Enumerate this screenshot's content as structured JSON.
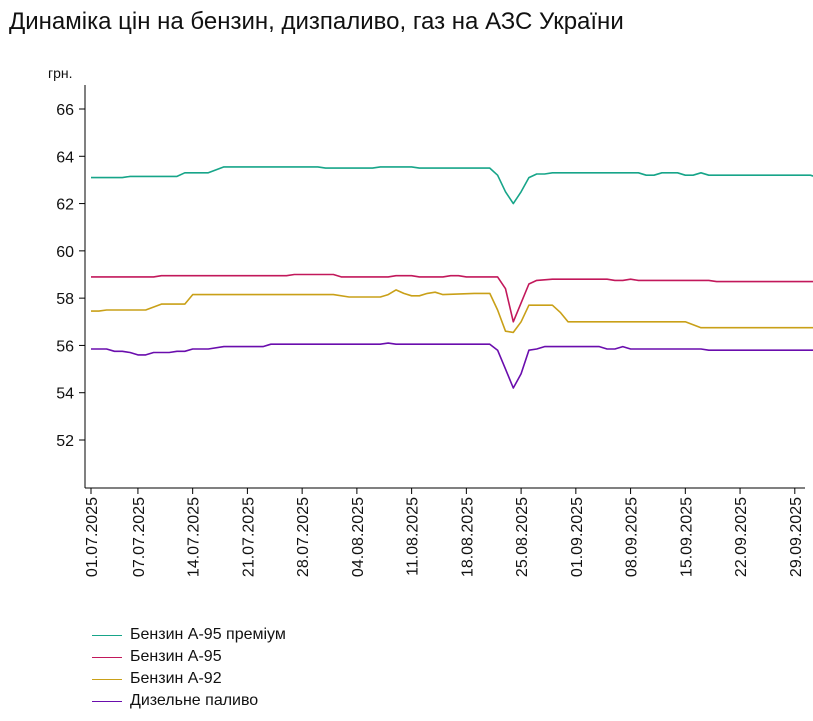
{
  "title": "Динаміка цін на бензин, дизпаливо, газ на АЗС України",
  "colors": {
    "a95_premium": "#17a589",
    "a95": "#c2185b",
    "a92": "#c9a018",
    "diesel": "#6a0dad",
    "axis": "#000000"
  },
  "chart_data": {
    "type": "line",
    "title": "Динаміка цін на бензин, дизпаливо, газ на АЗС України",
    "ylabel": "грн.",
    "xlabel": "",
    "ylim": [
      50,
      67
    ],
    "yticks": [
      52,
      54,
      56,
      58,
      60,
      62,
      64,
      66
    ],
    "x_start": "2025-07-01",
    "x_end": "2025-10-02",
    "x_tick_labels": [
      "01.07.2025",
      "07.07.2025",
      "14.07.2025",
      "21.07.2025",
      "28.07.2025",
      "04.08.2025",
      "11.08.2025",
      "18.08.2025",
      "25.08.2025",
      "01.09.2025",
      "08.09.2025",
      "15.09.2025",
      "22.09.2025",
      "29.09.2025"
    ],
    "grid": "none",
    "legend_placement": "bottom-left",
    "series": [
      {
        "name": "Бензин А-95 преміум",
        "color_key": "a95_premium",
        "points": [
          [
            "2025-07-01",
            63.1
          ],
          [
            "2025-07-05",
            63.1
          ],
          [
            "2025-07-06",
            63.15
          ],
          [
            "2025-07-12",
            63.15
          ],
          [
            "2025-07-13",
            63.3
          ],
          [
            "2025-07-16",
            63.3
          ],
          [
            "2025-07-18",
            63.55
          ],
          [
            "2025-07-30",
            63.55
          ],
          [
            "2025-07-31",
            63.5
          ],
          [
            "2025-08-06",
            63.5
          ],
          [
            "2025-08-07",
            63.55
          ],
          [
            "2025-08-11",
            63.55
          ],
          [
            "2025-08-12",
            63.5
          ],
          [
            "2025-08-21",
            63.5
          ],
          [
            "2025-08-22",
            63.2
          ],
          [
            "2025-08-23",
            62.5
          ],
          [
            "2025-08-24",
            62.0
          ],
          [
            "2025-08-25",
            62.5
          ],
          [
            "2025-08-26",
            63.1
          ],
          [
            "2025-08-27",
            63.25
          ],
          [
            "2025-08-28",
            63.25
          ],
          [
            "2025-08-29",
            63.3
          ],
          [
            "2025-09-09",
            63.3
          ],
          [
            "2025-09-10",
            63.2
          ],
          [
            "2025-09-11",
            63.2
          ],
          [
            "2025-09-12",
            63.3
          ],
          [
            "2025-09-14",
            63.3
          ],
          [
            "2025-09-15",
            63.2
          ],
          [
            "2025-09-16",
            63.2
          ],
          [
            "2025-09-17",
            63.3
          ],
          [
            "2025-09-18",
            63.2
          ],
          [
            "2025-10-01",
            63.2
          ],
          [
            "2025-10-02",
            63.1
          ]
        ]
      },
      {
        "name": "Бензин А-95",
        "color_key": "a95",
        "points": [
          [
            "2025-07-01",
            58.9
          ],
          [
            "2025-07-09",
            58.9
          ],
          [
            "2025-07-10",
            58.95
          ],
          [
            "2025-07-26",
            58.95
          ],
          [
            "2025-07-27",
            59.0
          ],
          [
            "2025-08-01",
            59.0
          ],
          [
            "2025-08-02",
            58.9
          ],
          [
            "2025-08-08",
            58.9
          ],
          [
            "2025-08-09",
            58.95
          ],
          [
            "2025-08-11",
            58.95
          ],
          [
            "2025-08-12",
            58.9
          ],
          [
            "2025-08-15",
            58.9
          ],
          [
            "2025-08-16",
            58.95
          ],
          [
            "2025-08-17",
            58.95
          ],
          [
            "2025-08-18",
            58.9
          ],
          [
            "2025-08-22",
            58.9
          ],
          [
            "2025-08-23",
            58.4
          ],
          [
            "2025-08-24",
            57.0
          ],
          [
            "2025-08-25",
            57.8
          ],
          [
            "2025-08-26",
            58.6
          ],
          [
            "2025-08-27",
            58.75
          ],
          [
            "2025-08-29",
            58.8
          ],
          [
            "2025-09-05",
            58.8
          ],
          [
            "2025-09-06",
            58.75
          ],
          [
            "2025-09-07",
            58.75
          ],
          [
            "2025-09-08",
            58.8
          ],
          [
            "2025-09-09",
            58.75
          ],
          [
            "2025-09-18",
            58.75
          ],
          [
            "2025-09-19",
            58.7
          ],
          [
            "2025-10-02",
            58.7
          ]
        ]
      },
      {
        "name": "Бензин А-92",
        "color_key": "a92",
        "points": [
          [
            "2025-07-01",
            57.45
          ],
          [
            "2025-07-02",
            57.45
          ],
          [
            "2025-07-03",
            57.5
          ],
          [
            "2025-07-08",
            57.5
          ],
          [
            "2025-07-10",
            57.75
          ],
          [
            "2025-07-13",
            57.75
          ],
          [
            "2025-07-14",
            58.15
          ],
          [
            "2025-08-01",
            58.15
          ],
          [
            "2025-08-03",
            58.05
          ],
          [
            "2025-08-07",
            58.05
          ],
          [
            "2025-08-08",
            58.15
          ],
          [
            "2025-08-09",
            58.35
          ],
          [
            "2025-08-10",
            58.2
          ],
          [
            "2025-08-11",
            58.1
          ],
          [
            "2025-08-12",
            58.1
          ],
          [
            "2025-08-13",
            58.2
          ],
          [
            "2025-08-14",
            58.25
          ],
          [
            "2025-08-15",
            58.15
          ],
          [
            "2025-08-19",
            58.2
          ],
          [
            "2025-08-21",
            58.2
          ],
          [
            "2025-08-22",
            57.5
          ],
          [
            "2025-08-23",
            56.6
          ],
          [
            "2025-08-24",
            56.55
          ],
          [
            "2025-08-25",
            57.0
          ],
          [
            "2025-08-26",
            57.7
          ],
          [
            "2025-08-29",
            57.7
          ],
          [
            "2025-08-30",
            57.4
          ],
          [
            "2025-08-31",
            57.0
          ],
          [
            "2025-09-15",
            57.0
          ],
          [
            "2025-09-17",
            56.75
          ],
          [
            "2025-10-02",
            56.75
          ]
        ]
      },
      {
        "name": "Дизельне паливо",
        "color_key": "diesel",
        "points": [
          [
            "2025-07-01",
            55.85
          ],
          [
            "2025-07-03",
            55.85
          ],
          [
            "2025-07-04",
            55.75
          ],
          [
            "2025-07-05",
            55.75
          ],
          [
            "2025-07-06",
            55.7
          ],
          [
            "2025-07-07",
            55.6
          ],
          [
            "2025-07-08",
            55.6
          ],
          [
            "2025-07-09",
            55.7
          ],
          [
            "2025-07-11",
            55.7
          ],
          [
            "2025-07-12",
            55.75
          ],
          [
            "2025-07-13",
            55.75
          ],
          [
            "2025-07-14",
            55.85
          ],
          [
            "2025-07-16",
            55.85
          ],
          [
            "2025-07-18",
            55.95
          ],
          [
            "2025-07-23",
            55.95
          ],
          [
            "2025-07-24",
            56.05
          ],
          [
            "2025-08-07",
            56.05
          ],
          [
            "2025-08-08",
            56.1
          ],
          [
            "2025-08-09",
            56.05
          ],
          [
            "2025-08-21",
            56.05
          ],
          [
            "2025-08-22",
            55.8
          ],
          [
            "2025-08-23",
            55.0
          ],
          [
            "2025-08-24",
            54.2
          ],
          [
            "2025-08-25",
            54.8
          ],
          [
            "2025-08-26",
            55.8
          ],
          [
            "2025-08-27",
            55.85
          ],
          [
            "2025-08-28",
            55.95
          ],
          [
            "2025-09-04",
            55.95
          ],
          [
            "2025-09-05",
            55.85
          ],
          [
            "2025-09-06",
            55.85
          ],
          [
            "2025-09-07",
            55.95
          ],
          [
            "2025-09-08",
            55.85
          ],
          [
            "2025-09-17",
            55.85
          ],
          [
            "2025-09-18",
            55.8
          ],
          [
            "2025-10-02",
            55.8
          ]
        ]
      }
    ]
  }
}
